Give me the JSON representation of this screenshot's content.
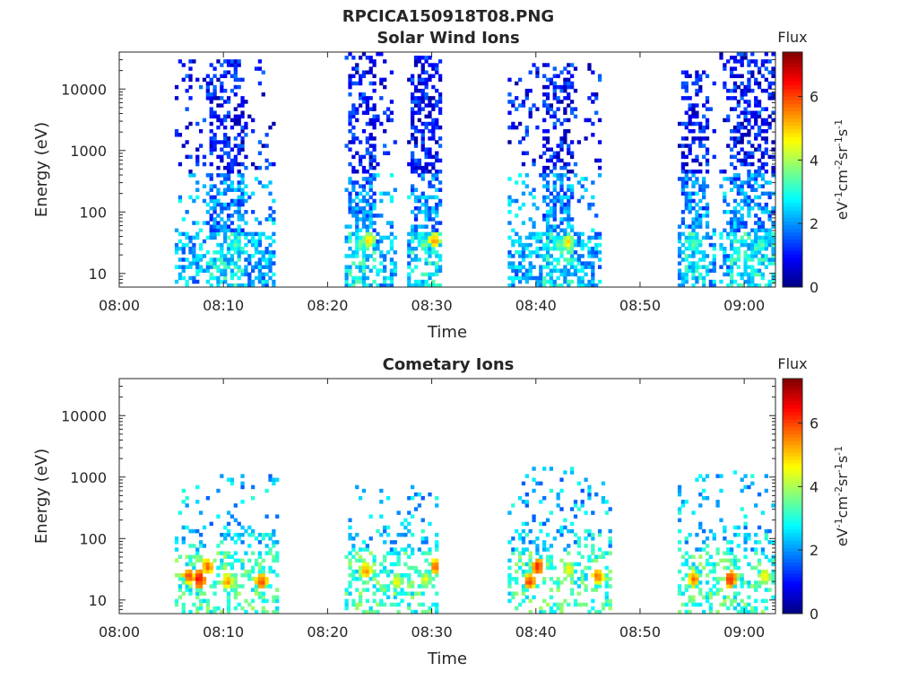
{
  "figure": {
    "title": "RPCICA150918T08.PNG"
  },
  "chart_data": [
    {
      "type": "heatmap",
      "title": "Solar Wind Ions",
      "xlabel": "Time",
      "ylabel": "Energy (eV)",
      "xticks": [
        "08:00",
        "08:10",
        "08:20",
        "08:30",
        "08:40",
        "08:50",
        "09:00"
      ],
      "xlim_minutes": [
        0,
        63
      ],
      "yscale": "log",
      "yticks": [
        "10",
        "100",
        "1000",
        "10000"
      ],
      "ylim": [
        6,
        40000
      ],
      "colorbar": {
        "label": "Flux",
        "unit": "eV-1cm-2sr-1s-1",
        "ticks": [
          "0",
          "2",
          "4",
          "6"
        ],
        "range": [
          0,
          7.4
        ],
        "colormap": "jet"
      },
      "bursts": [
        {
          "start": 5.3,
          "end": 14.8,
          "core_start": 8.5,
          "core_end": 11.8,
          "emax": 30000,
          "hot": [
            {
              "t": 11.0,
              "e": 30,
              "v": 3.8
            }
          ]
        },
        {
          "start": 21.5,
          "end": 26.5,
          "core_start": 21.7,
          "core_end": 24.6,
          "emax": 40000,
          "hot": [
            {
              "t": 23.8,
              "e": 35,
              "v": 5.2
            },
            {
              "t": 23.0,
              "e": 30,
              "v": 4.0
            }
          ]
        },
        {
          "start": 27.5,
          "end": 30.7,
          "core_start": 27.7,
          "core_end": 30.7,
          "emax": 35000,
          "hot": [
            {
              "t": 30.1,
              "e": 35,
              "v": 5.6
            },
            {
              "t": 29.1,
              "e": 30,
              "v": 4.0
            }
          ]
        },
        {
          "start": 37.0,
          "end": 46.0,
          "core_start": 40.3,
          "core_end": 43.5,
          "emax": 25000,
          "hot": [
            {
              "t": 42.9,
              "e": 33,
              "v": 5.0
            },
            {
              "t": 42.0,
              "e": 30,
              "v": 4.0
            }
          ]
        },
        {
          "start": 53.5,
          "end": 57.0,
          "core_start": 53.7,
          "core_end": 56.5,
          "emax": 20000,
          "hot": [
            {
              "t": 55.0,
              "e": 30,
              "v": 4.0
            }
          ]
        },
        {
          "start": 57.5,
          "end": 63.0,
          "core_start": 58.5,
          "core_end": 63.0,
          "emax": 40000,
          "hot": [
            {
              "t": 61.5,
              "e": 30,
              "v": 3.8
            }
          ]
        }
      ]
    },
    {
      "type": "heatmap",
      "title": "Cometary Ions",
      "xlabel": "Time",
      "ylabel": "Energy (eV)",
      "xticks": [
        "08:00",
        "08:10",
        "08:20",
        "08:30",
        "08:40",
        "08:50",
        "09:00"
      ],
      "xlim_minutes": [
        0,
        63
      ],
      "yscale": "log",
      "yticks": [
        "10",
        "100",
        "1000",
        "10000"
      ],
      "ylim": [
        6,
        40000
      ],
      "colorbar": {
        "label": "Flux",
        "unit": "eV-1cm-2sr-1s-1",
        "ticks": [
          "0",
          "2",
          "4",
          "6"
        ],
        "range": [
          0,
          7.4
        ],
        "colormap": "jet"
      },
      "bursts": [
        {
          "start": 5.3,
          "end": 15.0,
          "emax": 1100,
          "hot": [
            {
              "t": 6.5,
              "e": 25,
              "v": 6.2
            },
            {
              "t": 7.5,
              "e": 22,
              "v": 6.8
            },
            {
              "t": 8.3,
              "e": 35,
              "v": 6.0
            },
            {
              "t": 10.2,
              "e": 20,
              "v": 5.6
            },
            {
              "t": 13.5,
              "e": 20,
              "v": 6.3
            }
          ]
        },
        {
          "start": 21.5,
          "end": 30.5,
          "emax": 900,
          "hot": [
            {
              "t": 23.5,
              "e": 30,
              "v": 5.8
            },
            {
              "t": 26.5,
              "e": 20,
              "v": 5.0
            },
            {
              "t": 29.2,
              "e": 22,
              "v": 4.8
            },
            {
              "t": 30.2,
              "e": 35,
              "v": 6.0
            }
          ]
        },
        {
          "start": 37.0,
          "end": 47.0,
          "emax": 1400,
          "hot": [
            {
              "t": 39.2,
              "e": 20,
              "v": 6.3
            },
            {
              "t": 40.0,
              "e": 35,
              "v": 6.5
            },
            {
              "t": 43.0,
              "e": 32,
              "v": 5.0
            },
            {
              "t": 45.8,
              "e": 25,
              "v": 6.0
            }
          ]
        },
        {
          "start": 53.5,
          "end": 63.0,
          "emax": 1200,
          "hot": [
            {
              "t": 55.0,
              "e": 22,
              "v": 6.0
            },
            {
              "t": 58.5,
              "e": 22,
              "v": 6.5
            },
            {
              "t": 61.8,
              "e": 25,
              "v": 5.2
            }
          ]
        }
      ]
    }
  ]
}
